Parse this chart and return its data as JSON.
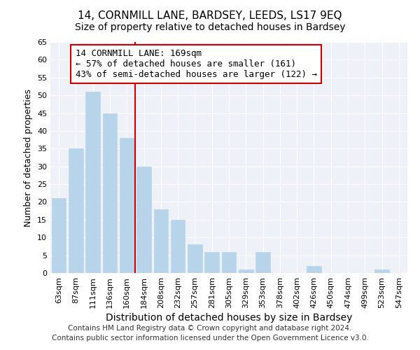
{
  "title": "14, CORNMILL LANE, BARDSEY, LEEDS, LS17 9EQ",
  "subtitle": "Size of property relative to detached houses in Bardsey",
  "xlabel": "Distribution of detached houses by size in Bardsey",
  "ylabel": "Number of detached properties",
  "bar_labels": [
    "63sqm",
    "87sqm",
    "111sqm",
    "136sqm",
    "160sqm",
    "184sqm",
    "208sqm",
    "232sqm",
    "257sqm",
    "281sqm",
    "305sqm",
    "329sqm",
    "353sqm",
    "378sqm",
    "402sqm",
    "426sqm",
    "450sqm",
    "474sqm",
    "499sqm",
    "523sqm",
    "547sqm"
  ],
  "bar_values": [
    21,
    35,
    51,
    45,
    38,
    30,
    18,
    15,
    8,
    6,
    6,
    1,
    6,
    0,
    0,
    2,
    0,
    0,
    0,
    1,
    0
  ],
  "bar_color": "#b8d4eb",
  "bar_edge_color": "#b8d4eb",
  "vline_x": 4.5,
  "vline_color": "#cc0000",
  "annotation_text": "14 CORNMILL LANE: 169sqm\n← 57% of detached houses are smaller (161)\n43% of semi-detached houses are larger (122) →",
  "annotation_box_edgecolor": "#cc0000",
  "annotation_box_facecolor": "#ffffff",
  "ylim": [
    0,
    65
  ],
  "yticks": [
    0,
    5,
    10,
    15,
    20,
    25,
    30,
    35,
    40,
    45,
    50,
    55,
    60,
    65
  ],
  "footer1": "Contains HM Land Registry data © Crown copyright and database right 2024.",
  "footer2": "Contains public sector information licensed under the Open Government Licence v3.0.",
  "title_fontsize": 11,
  "subtitle_fontsize": 10,
  "xlabel_fontsize": 10,
  "ylabel_fontsize": 9,
  "tick_fontsize": 8,
  "annotation_fontsize": 9,
  "footer_fontsize": 7.5,
  "bg_color": "#eef2f8"
}
